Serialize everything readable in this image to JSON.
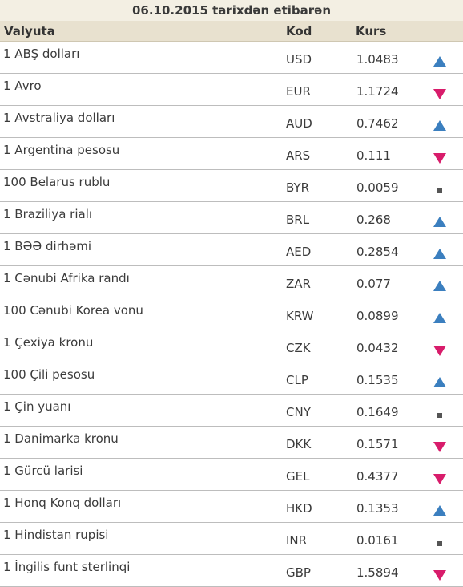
{
  "title": "06.10.2015 tarixdən etibarən",
  "columns": {
    "currency": "Valyuta",
    "code": "Kod",
    "rate": "Kurs"
  },
  "trend_colors": {
    "up": "#3b7fbf",
    "down": "#d81c6b",
    "same": "#555555"
  },
  "rows": [
    {
      "name": "1 ABŞ dolları",
      "code": "USD",
      "rate": "1.0483",
      "trend": "up"
    },
    {
      "name": "1 Avro",
      "code": "EUR",
      "rate": "1.1724",
      "trend": "down"
    },
    {
      "name": "1 Avstraliya dolları",
      "code": "AUD",
      "rate": "0.7462",
      "trend": "up"
    },
    {
      "name": "1 Argentina pesosu",
      "code": "ARS",
      "rate": "0.111",
      "trend": "down"
    },
    {
      "name": "100 Belarus rublu",
      "code": "BYR",
      "rate": "0.0059",
      "trend": "same"
    },
    {
      "name": "1 Braziliya rialı",
      "code": "BRL",
      "rate": "0.268",
      "trend": "up"
    },
    {
      "name": "1 BƏƏ dirhəmi",
      "code": "AED",
      "rate": "0.2854",
      "trend": "up"
    },
    {
      "name": "1 Cənubi Afrika randı",
      "code": "ZAR",
      "rate": "0.077",
      "trend": "up"
    },
    {
      "name": "100 Cənubi Korea vonu",
      "code": "KRW",
      "rate": "0.0899",
      "trend": "up"
    },
    {
      "name": "1 Çexiya kronu",
      "code": "CZK",
      "rate": "0.0432",
      "trend": "down"
    },
    {
      "name": "100 Çili pesosu",
      "code": "CLP",
      "rate": "0.1535",
      "trend": "up"
    },
    {
      "name": "1 Çin yuanı",
      "code": "CNY",
      "rate": "0.1649",
      "trend": "same"
    },
    {
      "name": "1 Danimarka kronu",
      "code": "DKK",
      "rate": "0.1571",
      "trend": "down"
    },
    {
      "name": "1 Gürcü larisi",
      "code": "GEL",
      "rate": "0.4377",
      "trend": "down"
    },
    {
      "name": "1 Honq Konq dolları",
      "code": "HKD",
      "rate": "0.1353",
      "trend": "up"
    },
    {
      "name": "1 Hindistan rupisi",
      "code": "INR",
      "rate": "0.0161",
      "trend": "same"
    },
    {
      "name": "1 İngilis funt sterlinqi",
      "code": "GBP",
      "rate": "1.5894",
      "trend": "down"
    }
  ]
}
